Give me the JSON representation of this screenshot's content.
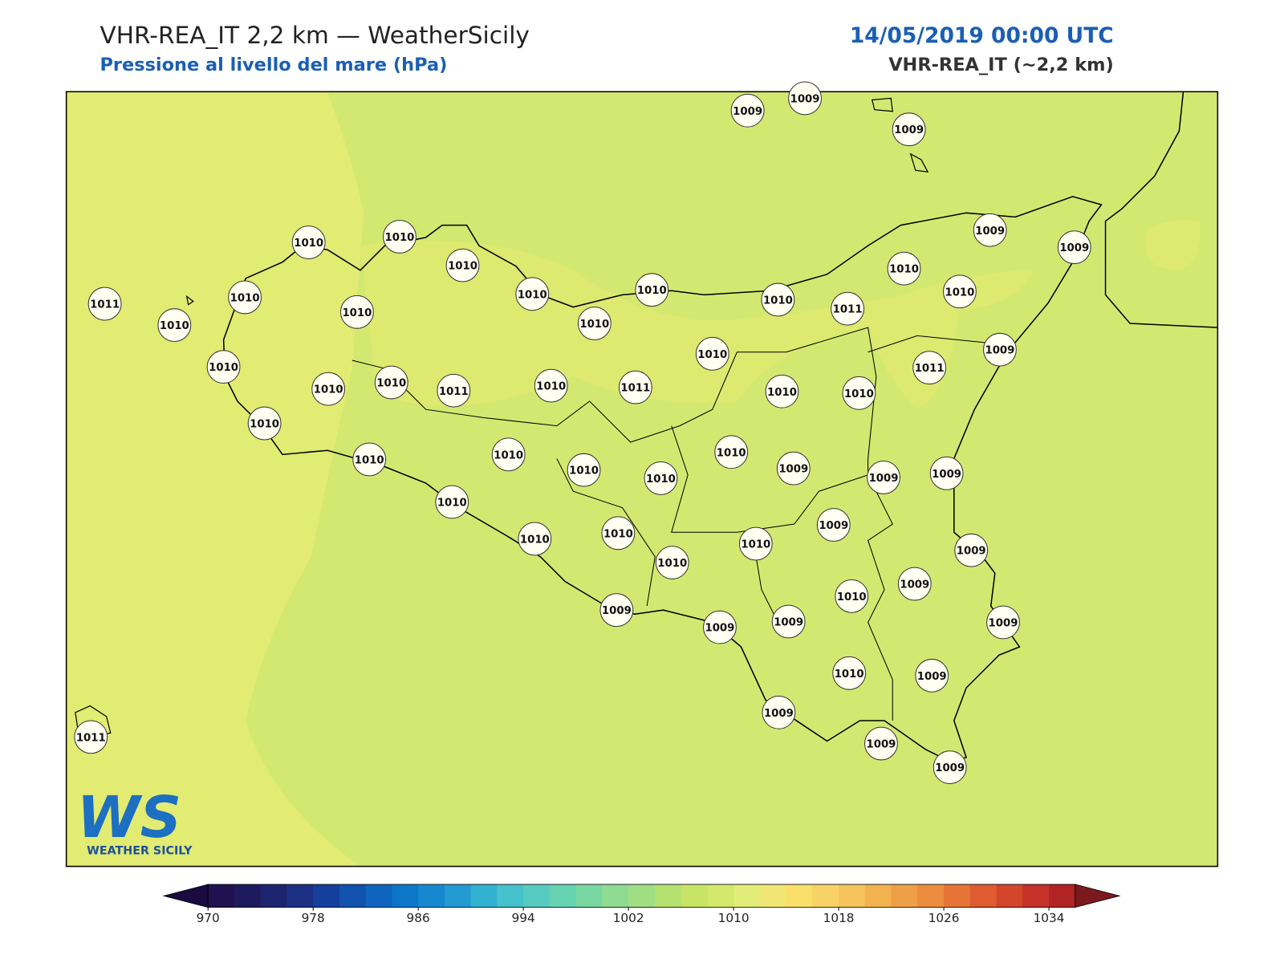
{
  "header": {
    "title": "VHR-REA_IT 2,2 km — WeatherSicily",
    "subtitle": "Pressione al livello del mare (hPa)",
    "date": "14/05/2019 00:00 UTC",
    "model": "VHR-REA_IT (~2,2 km)"
  },
  "stations": {
    "values": [
      1009,
      1009,
      1009,
      1010,
      1010,
      1010,
      1010,
      1010,
      1010,
      1010,
      1011,
      1010,
      1010,
      1009,
      1009,
      1011,
      1010,
      1010,
      1010,
      1010,
      1010,
      1010,
      1011,
      1010,
      1011,
      1010,
      1010,
      1010,
      1011,
      1009,
      1010,
      1010,
      1010,
      1010,
      1010,
      1010,
      1009,
      1009,
      1009,
      1010,
      1010,
      1010,
      1010,
      1010,
      1009,
      1009,
      1009,
      1010,
      1009,
      1009,
      1009,
      1009,
      1010,
      1009,
      1009,
      1009,
      1009,
      1011
    ]
  },
  "colorbar": {
    "lim": [
      970,
      1036
    ],
    "ticks": [
      970,
      978,
      986,
      994,
      1002,
      1010,
      1018,
      1026,
      1034
    ],
    "colors": [
      "#221150",
      "#1e1a5e",
      "#1d2470",
      "#1c3184",
      "#143f9b",
      "#1153ae",
      "#0f64bd",
      "#0c76c9",
      "#1788d0",
      "#239ad2",
      "#33b1d1",
      "#45c2cc",
      "#56cbc0",
      "#66d3b1",
      "#79d8a1",
      "#8edb91",
      "#a1de83",
      "#b4e170",
      "#c7e465",
      "#d4e86c",
      "#e2ec78",
      "#f0e673",
      "#fadf6a",
      "#f8d264",
      "#f5c45a",
      "#f2b24e",
      "#eea046",
      "#eb8c3e",
      "#e67436",
      "#de5c30",
      "#d3462c",
      "#c43228",
      "#b12424"
    ],
    "under_color": "#1a0a40",
    "over_color": "#7a1a1e"
  },
  "logo": {
    "text": "WS",
    "caption": "WEATHER SICILY"
  }
}
